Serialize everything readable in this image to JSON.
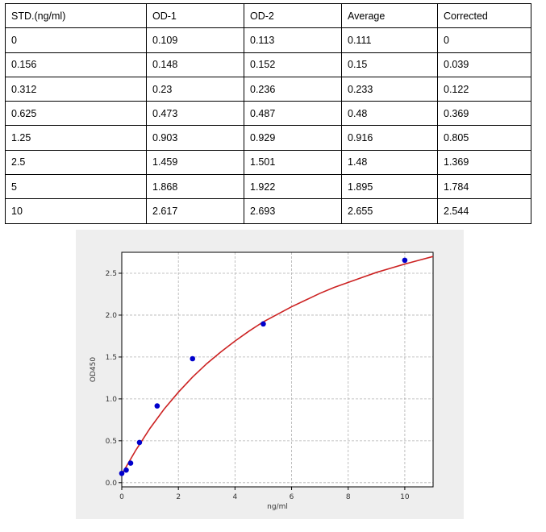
{
  "table": {
    "headers": [
      "STD.(ng/ml)",
      "OD-1",
      "OD-2",
      "Average",
      "Corrected"
    ],
    "rows": [
      [
        "0",
        "0.109",
        "0.113",
        "0.111",
        "0"
      ],
      [
        "0.156",
        "0.148",
        "0.152",
        "0.15",
        "0.039"
      ],
      [
        "0.312",
        "0.23",
        "0.236",
        "0.233",
        "0.122"
      ],
      [
        "0.625",
        "0.473",
        "0.487",
        "0.48",
        "0.369"
      ],
      [
        "1.25",
        "0.903",
        "0.929",
        "0.916",
        "0.805"
      ],
      [
        "2.5",
        "1.459",
        "1.501",
        "1.48",
        "1.369"
      ],
      [
        "5",
        "1.868",
        "1.922",
        "1.895",
        "1.784"
      ],
      [
        "10",
        "2.617",
        "2.693",
        "2.655",
        "2.544"
      ]
    ]
  },
  "chart_data": {
    "type": "scatter",
    "xlabel": "ng/ml",
    "ylabel": "OD450",
    "xlim": [
      0,
      11
    ],
    "ylim": [
      -0.05,
      2.75
    ],
    "xticks": [
      0,
      2,
      4,
      6,
      8,
      10
    ],
    "yticks": [
      0.0,
      0.5,
      1.0,
      1.5,
      2.0,
      2.5
    ],
    "ytick_labels": [
      "0.0",
      "0.5",
      "1.0",
      "1.5",
      "2.0",
      "2.5"
    ],
    "grid": true,
    "series": [
      {
        "kind": "points",
        "color": "#0000cc",
        "x": [
          0,
          0.156,
          0.312,
          0.625,
          1.25,
          2.5,
          5,
          10
        ],
        "y": [
          0.111,
          0.15,
          0.233,
          0.48,
          0.916,
          1.48,
          1.895,
          2.655
        ]
      },
      {
        "kind": "fit-curve",
        "color": "#cc2222",
        "x": [
          0,
          0.5,
          1,
          1.5,
          2,
          2.5,
          3,
          3.5,
          4,
          4.5,
          5,
          5.5,
          6,
          6.5,
          7,
          7.5,
          8,
          8.5,
          9,
          9.5,
          10,
          10.5,
          11
        ],
        "y": [
          0.1,
          0.39,
          0.65,
          0.88,
          1.08,
          1.26,
          1.42,
          1.56,
          1.69,
          1.81,
          1.92,
          2.01,
          2.1,
          2.18,
          2.26,
          2.33,
          2.39,
          2.45,
          2.51,
          2.56,
          2.61,
          2.655,
          2.7
        ]
      }
    ]
  }
}
